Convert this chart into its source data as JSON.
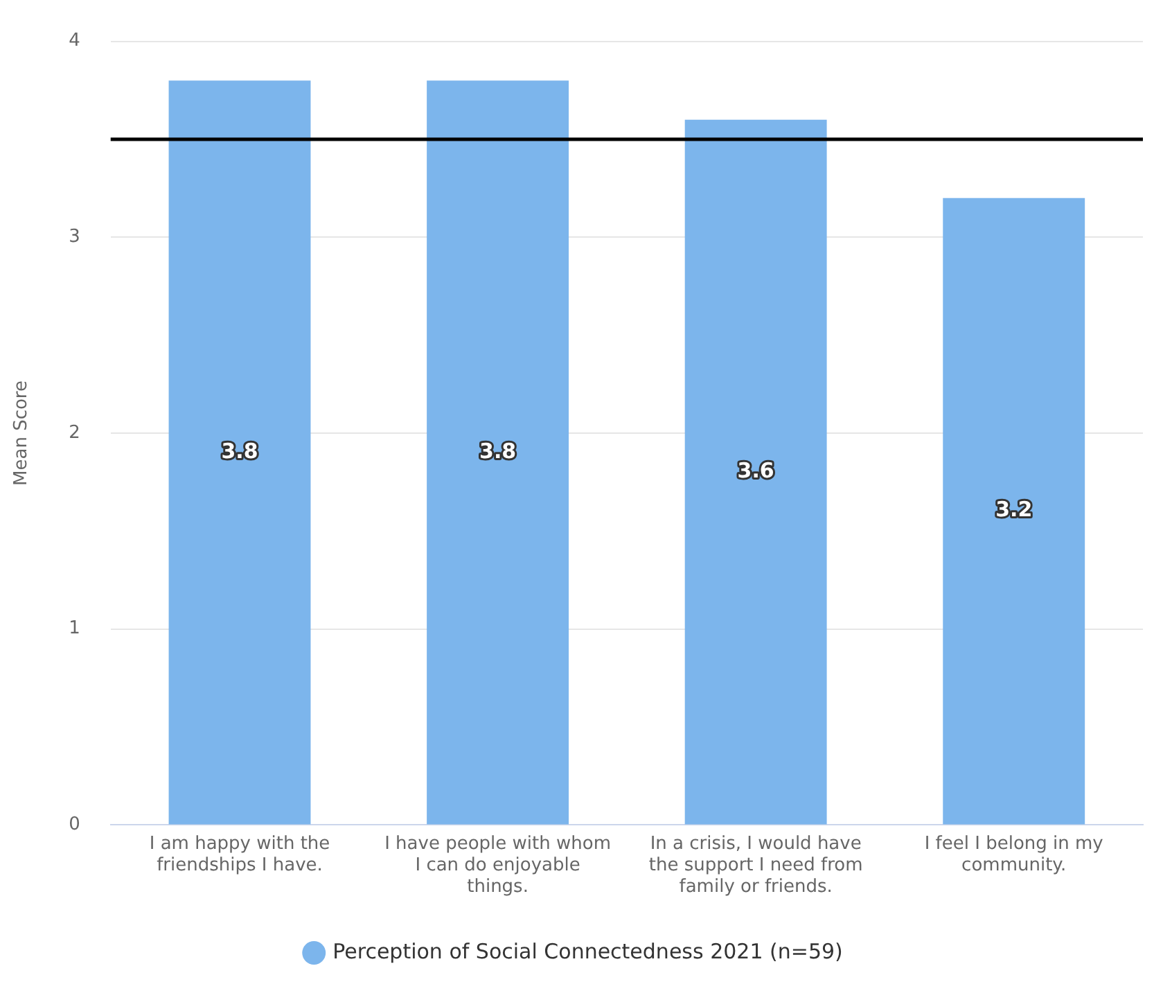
{
  "chart_data": {
    "type": "bar",
    "ylabel": "Mean Score",
    "categories": [
      "I am happy with the friendships I have.",
      "I have people with whom I can do enjoyable things.",
      "In a crisis, I would have the support I need from family or friends.",
      "I feel I belong in my community."
    ],
    "series": [
      {
        "name": "Perception of Social Connectedness 2021 (n=59)",
        "color": "#7cb5ec",
        "values": [
          3.8,
          3.8,
          3.6,
          3.2
        ]
      }
    ],
    "ylim": [
      0,
      4
    ],
    "yticks": [
      0,
      1,
      2,
      3,
      4
    ],
    "grid": "y",
    "legend": "bottom",
    "data_labels": true,
    "ref_lines": [
      {
        "axis": "y",
        "value": 3.5,
        "color": "#000000"
      }
    ]
  }
}
